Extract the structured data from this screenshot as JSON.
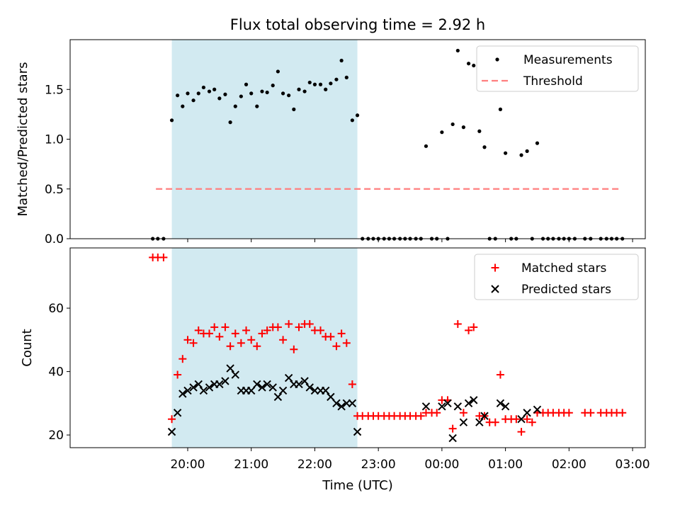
{
  "title": "Flux total observing time = 2.92 h",
  "colors": {
    "shade": "#add8e6",
    "measurement": "#000000",
    "threshold": "#ff7f7f",
    "matched": "#ff0000",
    "predicted": "#000000"
  },
  "chart_data": [
    {
      "type": "scatter",
      "panel": "top",
      "title": "Flux total observing time = 2.92 h",
      "xlabel": "",
      "ylabel": "Matched/Predicted stars",
      "x_unit": "hours since 19:00 UTC (axis shows clock times)",
      "xlim": [
        -0.85,
        8.2
      ],
      "ylim": [
        0,
        2.0
      ],
      "yticks": [
        "0.0",
        "0.5",
        "1.0",
        "1.5"
      ],
      "xticks": [
        "20:00",
        "21:00",
        "22:00",
        "23:00",
        "00:00",
        "01:00",
        "02:00",
        "03:00"
      ],
      "shaded_interval_x": [
        0.75,
        3.67
      ],
      "legend": {
        "placement": "top-right",
        "entries": [
          "Measurements",
          "Threshold"
        ]
      },
      "threshold": {
        "name": "Threshold",
        "y": 0.5,
        "x_range": [
          0.5,
          7.83
        ]
      },
      "series": [
        {
          "name": "Measurements",
          "points": [
            [
              0.45,
              0
            ],
            [
              0.53,
              0
            ],
            [
              0.62,
              0
            ],
            [
              0.75,
              1.19
            ],
            [
              0.84,
              1.44
            ],
            [
              0.92,
              1.33
            ],
            [
              1.0,
              1.46
            ],
            [
              1.09,
              1.39
            ],
            [
              1.17,
              1.46
            ],
            [
              1.25,
              1.52
            ],
            [
              1.34,
              1.48
            ],
            [
              1.42,
              1.5
            ],
            [
              1.5,
              1.41
            ],
            [
              1.59,
              1.45
            ],
            [
              1.67,
              1.17
            ],
            [
              1.75,
              1.33
            ],
            [
              1.84,
              1.43
            ],
            [
              1.92,
              1.55
            ],
            [
              2.0,
              1.46
            ],
            [
              2.09,
              1.33
            ],
            [
              2.17,
              1.48
            ],
            [
              2.25,
              1.47
            ],
            [
              2.34,
              1.54
            ],
            [
              2.42,
              1.68
            ],
            [
              2.5,
              1.46
            ],
            [
              2.59,
              1.44
            ],
            [
              2.67,
              1.3
            ],
            [
              2.75,
              1.5
            ],
            [
              2.84,
              1.48
            ],
            [
              2.92,
              1.57
            ],
            [
              3.0,
              1.55
            ],
            [
              3.09,
              1.55
            ],
            [
              3.17,
              1.5
            ],
            [
              3.25,
              1.56
            ],
            [
              3.34,
              1.6
            ],
            [
              3.42,
              1.79
            ],
            [
              3.5,
              1.62
            ],
            [
              3.59,
              1.19
            ],
            [
              3.67,
              1.24
            ],
            [
              3.75,
              0
            ],
            [
              3.84,
              0
            ],
            [
              3.92,
              0
            ],
            [
              4.0,
              0
            ],
            [
              4.09,
              0
            ],
            [
              4.17,
              0
            ],
            [
              4.25,
              0
            ],
            [
              4.34,
              0
            ],
            [
              4.42,
              0
            ],
            [
              4.5,
              0
            ],
            [
              4.59,
              0
            ],
            [
              4.67,
              0
            ],
            [
              4.75,
              0.93
            ],
            [
              4.84,
              0
            ],
            [
              4.92,
              0
            ],
            [
              5.0,
              1.07
            ],
            [
              5.09,
              0
            ],
            [
              5.17,
              1.15
            ],
            [
              5.25,
              1.89
            ],
            [
              5.34,
              1.12
            ],
            [
              5.42,
              1.76
            ],
            [
              5.5,
              1.74
            ],
            [
              5.59,
              1.08
            ],
            [
              5.67,
              0.92
            ],
            [
              5.75,
              0
            ],
            [
              5.84,
              0
            ],
            [
              5.92,
              1.3
            ],
            [
              6.0,
              0.86
            ],
            [
              6.09,
              0
            ],
            [
              6.17,
              0
            ],
            [
              6.25,
              0.84
            ],
            [
              6.34,
              0.88
            ],
            [
              6.42,
              0
            ],
            [
              6.5,
              0.96
            ],
            [
              6.59,
              0
            ],
            [
              6.67,
              0
            ],
            [
              6.75,
              0
            ],
            [
              6.84,
              0
            ],
            [
              6.92,
              0
            ],
            [
              7.0,
              0
            ],
            [
              7.09,
              0
            ],
            [
              7.25,
              0
            ],
            [
              7.34,
              0
            ],
            [
              7.5,
              0
            ],
            [
              7.59,
              0
            ],
            [
              7.67,
              0
            ],
            [
              7.75,
              0
            ],
            [
              7.84,
              0
            ]
          ]
        }
      ]
    },
    {
      "type": "scatter",
      "panel": "bottom",
      "title": "",
      "xlabel": "Time (UTC)",
      "ylabel": "Count",
      "x_unit": "hours since 19:00 UTC (axis shows clock times)",
      "xlim": [
        -0.85,
        8.2
      ],
      "ylim": [
        16,
        79
      ],
      "yticks": [
        "20",
        "40",
        "60"
      ],
      "xticks": [
        "20:00",
        "21:00",
        "22:00",
        "23:00",
        "00:00",
        "01:00",
        "02:00",
        "03:00"
      ],
      "shaded_interval_x": [
        0.75,
        3.67
      ],
      "legend": {
        "placement": "top-right",
        "entries": [
          "Matched stars",
          "Predicted stars"
        ]
      },
      "series": [
        {
          "name": "Matched stars",
          "marker": "+",
          "points": [
            [
              0.45,
              76
            ],
            [
              0.53,
              76
            ],
            [
              0.62,
              76
            ],
            [
              0.75,
              25
            ],
            [
              0.84,
              39
            ],
            [
              0.92,
              44
            ],
            [
              1.0,
              50
            ],
            [
              1.09,
              49
            ],
            [
              1.17,
              53
            ],
            [
              1.25,
              52
            ],
            [
              1.34,
              52
            ],
            [
              1.42,
              54
            ],
            [
              1.5,
              51
            ],
            [
              1.59,
              54
            ],
            [
              1.67,
              48
            ],
            [
              1.75,
              52
            ],
            [
              1.84,
              49
            ],
            [
              1.92,
              53
            ],
            [
              2.0,
              50
            ],
            [
              2.09,
              48
            ],
            [
              2.17,
              52
            ],
            [
              2.25,
              53
            ],
            [
              2.34,
              54
            ],
            [
              2.42,
              54
            ],
            [
              2.5,
              50
            ],
            [
              2.59,
              55
            ],
            [
              2.67,
              47
            ],
            [
              2.75,
              54
            ],
            [
              2.84,
              55
            ],
            [
              2.92,
              55
            ],
            [
              3.0,
              53
            ],
            [
              3.09,
              53
            ],
            [
              3.17,
              51
            ],
            [
              3.25,
              51
            ],
            [
              3.34,
              48
            ],
            [
              3.42,
              52
            ],
            [
              3.5,
              49
            ],
            [
              3.59,
              36
            ],
            [
              3.67,
              26
            ],
            [
              3.75,
              26
            ],
            [
              3.84,
              26
            ],
            [
              3.92,
              26
            ],
            [
              4.0,
              26
            ],
            [
              4.09,
              26
            ],
            [
              4.17,
              26
            ],
            [
              4.25,
              26
            ],
            [
              4.34,
              26
            ],
            [
              4.42,
              26
            ],
            [
              4.5,
              26
            ],
            [
              4.59,
              26
            ],
            [
              4.67,
              26
            ],
            [
              4.75,
              27
            ],
            [
              4.84,
              27
            ],
            [
              4.92,
              27
            ],
            [
              5.0,
              31
            ],
            [
              5.09,
              31
            ],
            [
              5.17,
              22
            ],
            [
              5.25,
              55
            ],
            [
              5.34,
              27
            ],
            [
              5.42,
              53
            ],
            [
              5.5,
              54
            ],
            [
              5.59,
              26
            ],
            [
              5.67,
              26
            ],
            [
              5.75,
              24
            ],
            [
              5.84,
              24
            ],
            [
              5.92,
              39
            ],
            [
              6.0,
              25
            ],
            [
              6.09,
              25
            ],
            [
              6.17,
              25
            ],
            [
              6.25,
              21
            ],
            [
              6.34,
              25
            ],
            [
              6.42,
              24
            ],
            [
              6.5,
              27
            ],
            [
              6.59,
              27
            ],
            [
              6.67,
              27
            ],
            [
              6.75,
              27
            ],
            [
              6.84,
              27
            ],
            [
              6.92,
              27
            ],
            [
              7.0,
              27
            ],
            [
              7.25,
              27
            ],
            [
              7.34,
              27
            ],
            [
              7.5,
              27
            ],
            [
              7.59,
              27
            ],
            [
              7.67,
              27
            ],
            [
              7.75,
              27
            ],
            [
              7.84,
              27
            ]
          ]
        },
        {
          "name": "Predicted stars",
          "marker": "x",
          "points": [
            [
              0.75,
              21
            ],
            [
              0.84,
              27
            ],
            [
              0.92,
              33
            ],
            [
              1.0,
              34
            ],
            [
              1.09,
              35
            ],
            [
              1.17,
              36
            ],
            [
              1.25,
              34
            ],
            [
              1.34,
              35
            ],
            [
              1.42,
              36
            ],
            [
              1.5,
              36
            ],
            [
              1.59,
              37
            ],
            [
              1.67,
              41
            ],
            [
              1.75,
              39
            ],
            [
              1.84,
              34
            ],
            [
              1.92,
              34
            ],
            [
              2.0,
              34
            ],
            [
              2.09,
              36
            ],
            [
              2.17,
              35
            ],
            [
              2.25,
              36
            ],
            [
              2.34,
              35
            ],
            [
              2.42,
              32
            ],
            [
              2.5,
              34
            ],
            [
              2.59,
              38
            ],
            [
              2.67,
              36
            ],
            [
              2.75,
              36
            ],
            [
              2.84,
              37
            ],
            [
              2.92,
              35
            ],
            [
              3.0,
              34
            ],
            [
              3.09,
              34
            ],
            [
              3.17,
              34
            ],
            [
              3.25,
              32
            ],
            [
              3.34,
              30
            ],
            [
              3.42,
              29
            ],
            [
              3.5,
              30
            ],
            [
              3.59,
              30
            ],
            [
              3.67,
              21
            ],
            [
              4.75,
              29
            ],
            [
              5.0,
              29
            ],
            [
              5.09,
              30
            ],
            [
              5.17,
              19
            ],
            [
              5.25,
              29
            ],
            [
              5.34,
              24
            ],
            [
              5.42,
              30
            ],
            [
              5.5,
              31
            ],
            [
              5.59,
              24
            ],
            [
              5.67,
              26
            ],
            [
              5.92,
              30
            ],
            [
              6.0,
              29
            ],
            [
              6.25,
              25
            ],
            [
              6.34,
              27
            ],
            [
              6.5,
              28
            ]
          ]
        }
      ]
    }
  ]
}
